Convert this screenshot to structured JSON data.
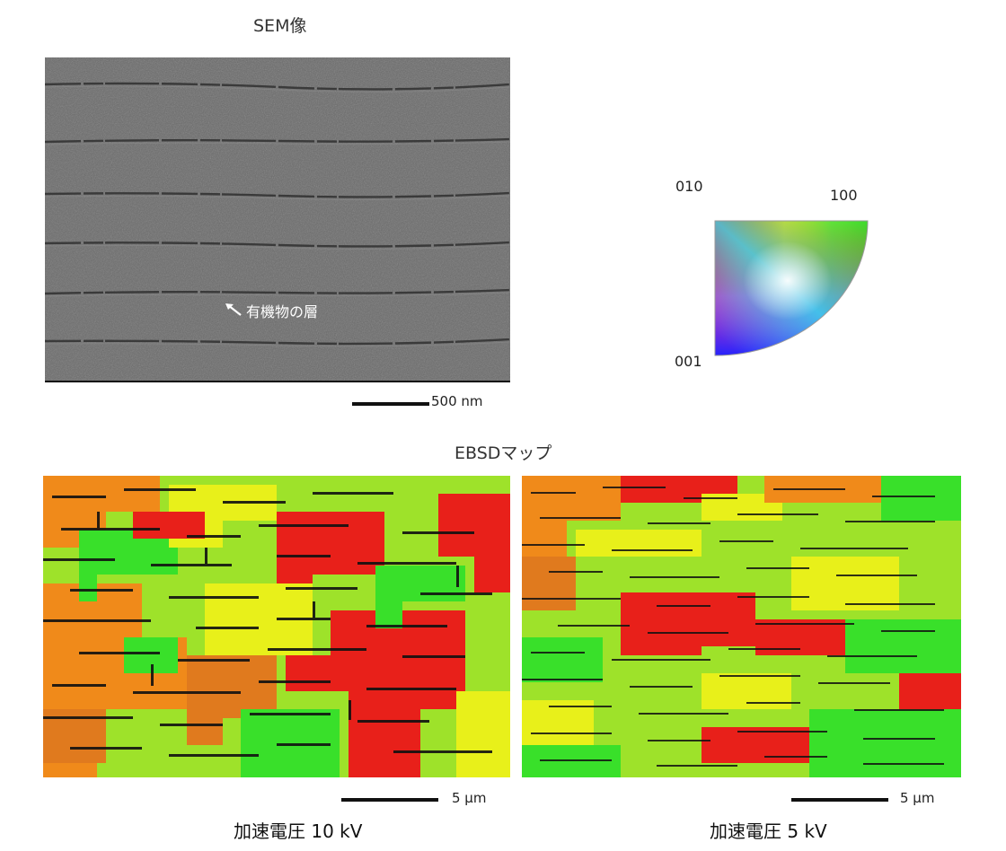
{
  "sem": {
    "title": "SEM像",
    "annotation": "有機物の層",
    "scale_label": "500 nm"
  },
  "ipf": {
    "label_010": "010",
    "label_100": "100",
    "label_001": "001"
  },
  "ebsd": {
    "title": "EBSDマップ",
    "left": {
      "scale_label": "5 μm",
      "caption": "加速電圧 10 kV"
    },
    "right": {
      "scale_label": "5 μm",
      "caption": "加速電圧 5 kV"
    }
  },
  "colors": {
    "red": "#e8201a",
    "orange": "#f08a1a",
    "yellow": "#e8f01a",
    "green": "#39e02a",
    "lime": "#9ee22a",
    "grain_boundary": "#111111",
    "sem_gray": "#6b6b6b"
  },
  "icons": {
    "annotation_arrow": "arrow-up-left-icon"
  }
}
